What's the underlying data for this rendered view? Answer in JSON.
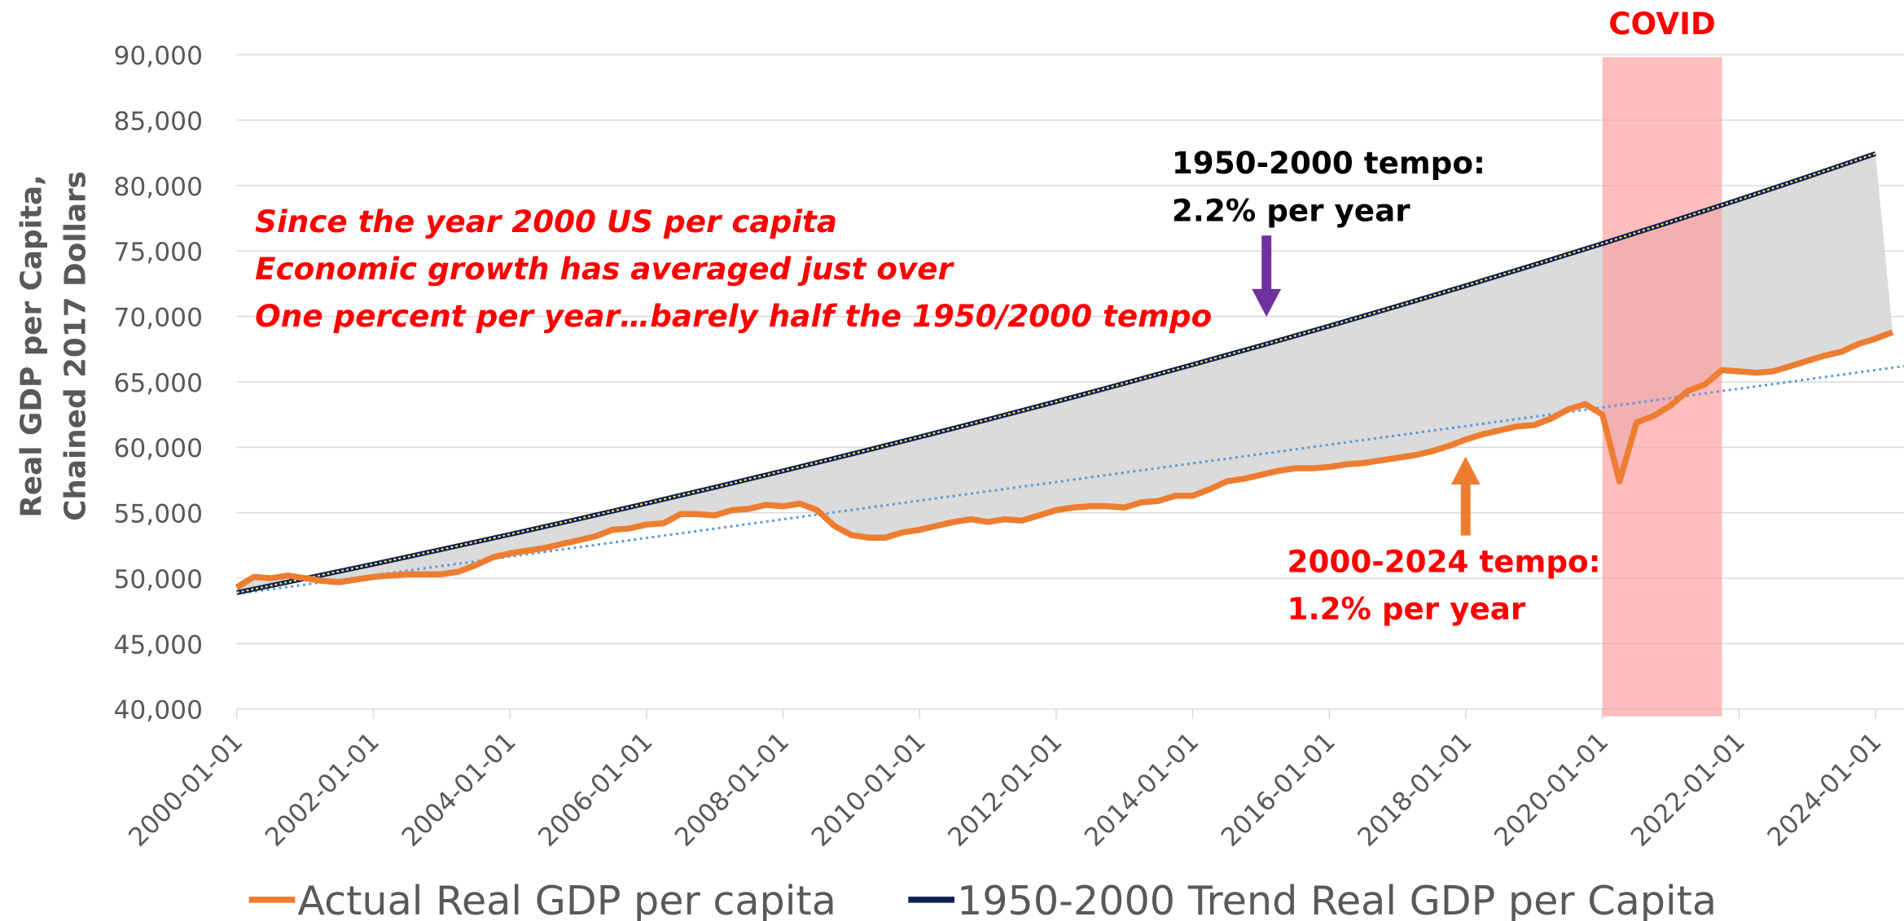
{
  "chart_data": {
    "type": "line",
    "ylabel": [
      "Real GDP per Capita,",
      "Chained 2017 Dollars"
    ],
    "xlim": [
      "2000-01-01",
      "2024-06-01"
    ],
    "xticks": [
      "2000-01-01",
      "2002-01-01",
      "2004-01-01",
      "2006-01-01",
      "2008-01-01",
      "2010-01-01",
      "2012-01-01",
      "2014-01-01",
      "2016-01-01",
      "2018-01-01",
      "2020-01-01",
      "2022-01-01",
      "2024-01-01"
    ],
    "ylim": [
      40000,
      90000
    ],
    "yticks": [
      {
        "value": 40000,
        "label": "40,000"
      },
      {
        "value": 45000,
        "label": "45,000"
      },
      {
        "value": 50000,
        "label": "50,000"
      },
      {
        "value": 55000,
        "label": "55,000"
      },
      {
        "value": 60000,
        "label": "60,000"
      },
      {
        "value": 65000,
        "label": "65,000"
      },
      {
        "value": 70000,
        "label": "70,000"
      },
      {
        "value": 75000,
        "label": "75,000"
      },
      {
        "value": 80000,
        "label": "80,000"
      },
      {
        "value": 85000,
        "label": "85,000"
      },
      {
        "value": 90000,
        "label": "90,000"
      }
    ],
    "grid": true,
    "series": [
      {
        "name": "Actual Real GDP per capita",
        "color": "#ed7d31",
        "x": [
          "2000-01-01",
          "2000-04-01",
          "2000-07-01",
          "2000-10-01",
          "2001-01-01",
          "2001-04-01",
          "2001-07-01",
          "2001-10-01",
          "2002-01-01",
          "2002-04-01",
          "2002-07-01",
          "2002-10-01",
          "2003-01-01",
          "2003-04-01",
          "2003-07-01",
          "2003-10-01",
          "2004-01-01",
          "2004-04-01",
          "2004-07-01",
          "2004-10-01",
          "2005-01-01",
          "2005-04-01",
          "2005-07-01",
          "2005-10-01",
          "2006-01-01",
          "2006-04-01",
          "2006-07-01",
          "2006-10-01",
          "2007-01-01",
          "2007-04-01",
          "2007-07-01",
          "2007-10-01",
          "2008-01-01",
          "2008-04-01",
          "2008-07-01",
          "2008-10-01",
          "2009-01-01",
          "2009-04-01",
          "2009-07-01",
          "2009-10-01",
          "2010-01-01",
          "2010-04-01",
          "2010-07-01",
          "2010-10-01",
          "2011-01-01",
          "2011-04-01",
          "2011-07-01",
          "2011-10-01",
          "2012-01-01",
          "2012-04-01",
          "2012-07-01",
          "2012-10-01",
          "2013-01-01",
          "2013-04-01",
          "2013-07-01",
          "2013-10-01",
          "2014-01-01",
          "2014-04-01",
          "2014-07-01",
          "2014-10-01",
          "2015-01-01",
          "2015-04-01",
          "2015-07-01",
          "2015-10-01",
          "2016-01-01",
          "2016-04-01",
          "2016-07-01",
          "2016-10-01",
          "2017-01-01",
          "2017-04-01",
          "2017-07-01",
          "2017-10-01",
          "2018-01-01",
          "2018-04-01",
          "2018-07-01",
          "2018-10-01",
          "2019-01-01",
          "2019-04-01",
          "2019-07-01",
          "2019-10-01",
          "2020-01-01",
          "2020-04-01",
          "2020-07-01",
          "2020-10-01",
          "2021-01-01",
          "2021-04-01",
          "2021-07-01",
          "2021-10-01",
          "2022-01-01",
          "2022-04-01",
          "2022-07-01",
          "2022-10-01",
          "2023-01-01",
          "2023-04-01",
          "2023-07-01",
          "2023-10-01",
          "2024-01-01",
          "2024-04-01"
        ],
        "values": [
          49300,
          50100,
          50000,
          50200,
          50000,
          49800,
          49700,
          49900,
          50100,
          50200,
          50300,
          50300,
          50300,
          50500,
          51000,
          51600,
          51900,
          52100,
          52300,
          52600,
          52900,
          53200,
          53700,
          53800,
          54100,
          54200,
          54900,
          54900,
          54800,
          55200,
          55300,
          55600,
          55500,
          55700,
          55200,
          54000,
          53300,
          53100,
          53100,
          53500,
          53700,
          54000,
          54300,
          54500,
          54300,
          54500,
          54400,
          54800,
          55200,
          55400,
          55500,
          55500,
          55400,
          55800,
          55900,
          56300,
          56300,
          56800,
          57400,
          57600,
          57900,
          58200,
          58400,
          58400,
          58500,
          58700,
          58800,
          59000,
          59200,
          59400,
          59700,
          60100,
          60600,
          61000,
          61300,
          61600,
          61700,
          62200,
          62900,
          63300,
          62500,
          57400,
          61900,
          62400,
          63200,
          64300,
          64800,
          65900,
          65800,
          65700,
          65800,
          66200,
          66600,
          67000,
          67300,
          67900,
          68300,
          68800
        ]
      },
      {
        "name": "1950-2000 Trend Real GDP per Capita",
        "color": "#0b1f4f",
        "x": [
          "2000-01-01",
          "2001-01-01",
          "2002-01-01",
          "2003-01-01",
          "2004-01-01",
          "2005-01-01",
          "2006-01-01",
          "2007-01-01",
          "2008-01-01",
          "2009-01-01",
          "2010-01-01",
          "2011-01-01",
          "2012-01-01",
          "2013-01-01",
          "2014-01-01",
          "2015-01-01",
          "2016-01-01",
          "2017-01-01",
          "2018-01-01",
          "2019-01-01",
          "2020-01-01",
          "2021-01-01",
          "2022-01-01",
          "2023-01-01",
          "2024-01-01"
        ],
        "values": [
          48900,
          49976,
          51075,
          52199,
          53347,
          54521,
          55720,
          56946,
          58199,
          59479,
          60788,
          62125,
          63492,
          64889,
          66316,
          67775,
          69266,
          70790,
          72348,
          73939,
          75566,
          77229,
          78928,
          80664,
          82439
        ]
      }
    ],
    "trendline": {
      "color": "#5b9bd5",
      "x": [
        "2000-01-01",
        "2024-06-01"
      ],
      "values": [
        48800,
        66200
      ]
    },
    "shaded_periods": [
      {
        "label": "COVID",
        "start": "2020-01-01",
        "end": "2021-10-01",
        "color": "#ff9999"
      }
    ],
    "annotations": [
      {
        "lines": [
          "Since the year 2000 US per capita",
          "Economic growth has averaged just over",
          "One percent per year…barely half the 1950/2000 tempo"
        ]
      },
      {
        "lines": [
          "1950-2000 tempo:",
          "2.2% per year"
        ]
      },
      {
        "lines": [
          "2000-2024 tempo:",
          "1.2% per year"
        ]
      }
    ]
  }
}
